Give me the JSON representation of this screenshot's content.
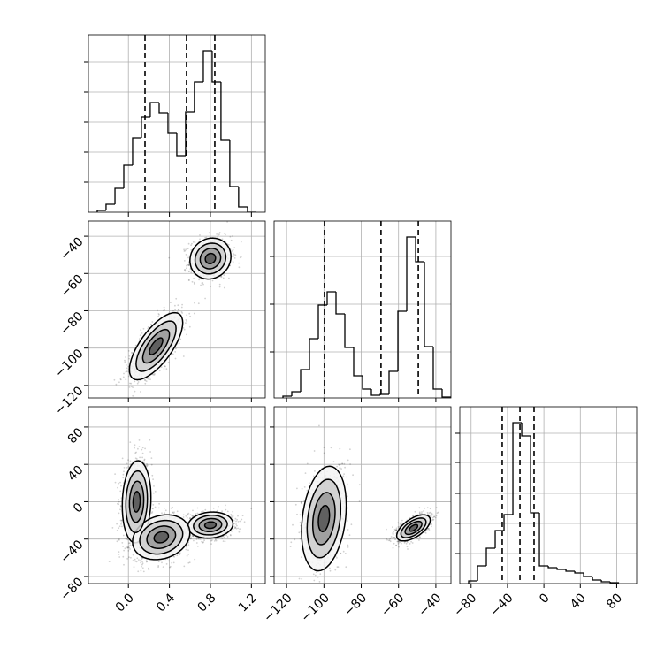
{
  "chart_data": {
    "type": "corner",
    "grid": true,
    "params": [
      {
        "lim": [
          -0.39,
          1.335
        ],
        "ticks": [
          {
            "value": 0,
            "label": "0.0"
          },
          {
            "value": 0.4,
            "label": "0.4"
          },
          {
            "value": 0.8,
            "label": "0.8"
          },
          {
            "value": 1.2,
            "label": "1.2"
          }
        ]
      },
      {
        "lim": [
          -126.7,
          -31.9
        ],
        "ticks": [
          {
            "value": -120,
            "label": "−120"
          },
          {
            "value": -100,
            "label": "−100"
          },
          {
            "value": -80,
            "label": "−80"
          },
          {
            "value": -60,
            "label": "−60"
          },
          {
            "value": -40,
            "label": "−40"
          }
        ]
      },
      {
        "lim": [
          -92.4,
          101.9
        ],
        "ticks": [
          {
            "value": -80,
            "label": "−80"
          },
          {
            "value": -40,
            "label": "−40"
          },
          0,
          40,
          80
        ]
      }
    ],
    "row_ticks": [
      null,
      {
        "lim": [
          -126.7,
          -31.9
        ],
        "ticks": [
          {
            "value": -40,
            "label": "−40"
          },
          {
            "value": -60,
            "label": "−60"
          },
          {
            "value": -80,
            "label": "−80"
          },
          {
            "value": -100,
            "label": "−100"
          },
          {
            "value": -120,
            "label": "−120"
          }
        ]
      },
      {
        "lim": [
          -87.6,
          101.7
        ],
        "ticks": [
          80,
          40,
          0,
          {
            "value": -40,
            "label": "−40"
          },
          {
            "value": -80,
            "label": "−80"
          }
        ]
      }
    ],
    "hist": [
      {
        "bins": [
          -0.304,
          -0.218,
          -0.131,
          -0.045,
          0.041,
          0.127,
          0.213,
          0.3,
          0.386,
          0.472,
          0.558,
          0.644,
          0.731,
          0.817,
          0.903,
          0.989,
          1.075,
          1.162,
          1.248
        ],
        "counts": [
          2,
          9,
          27,
          53,
          84,
          108,
          124,
          112,
          90,
          64,
          113,
          147,
          182,
          147,
          82,
          29,
          6,
          0
        ],
        "quantiles": [
          0.162,
          0.567,
          0.843
        ],
        "ylim": [
          0,
          200
        ],
        "yticks": [
          34,
          68,
          102,
          136,
          170
        ]
      },
      {
        "bins": [
          -121.96,
          -117.22,
          -112.48,
          -107.74,
          -103.0,
          -98.26,
          -93.52,
          -88.78,
          -84.04,
          -79.3,
          -74.56,
          -69.82,
          -65.08,
          -60.34,
          -55.6,
          -50.86,
          -46.12,
          -41.38,
          -36.64,
          -31.9
        ],
        "counts": [
          2,
          7,
          32,
          67,
          105,
          120,
          95,
          57,
          25,
          10,
          3,
          4,
          30,
          98,
          182,
          154,
          58,
          10,
          1
        ],
        "quantiles": [
          -99.7,
          -69.4,
          -49.4
        ],
        "ylim": [
          0,
          200
        ],
        "yticks": [
          52,
          106,
          160
        ]
      },
      {
        "bins": [
          -82.68,
          -72.96,
          -63.24,
          -53.52,
          -43.8,
          -34.08,
          -24.36,
          -14.64,
          -4.92,
          4.8,
          14.52,
          24.24,
          33.96,
          43.68,
          53.4,
          63.12,
          72.84,
          82.56
        ],
        "counts": [
          3,
          20,
          40,
          60,
          78,
          182,
          167,
          80,
          20,
          18,
          16,
          14,
          12,
          8,
          4,
          2,
          1
        ],
        "quantiles": [
          -45.8,
          -26.3,
          -10.8
        ],
        "ylim": [
          0,
          200
        ],
        "yticks": [
          34,
          68,
          102,
          137,
          170
        ]
      }
    ],
    "contour_levels": [
      0.5,
      1,
      1.5,
      2
    ],
    "pairs": [
      {
        "col": 0,
        "row": 1,
        "clusters": [
          {
            "x": 0.8,
            "y": -52,
            "sx": 0.1,
            "sy": 5.5,
            "rho": 0.1
          },
          {
            "x": 0.27,
            "y": -99,
            "sx": 0.13,
            "sy": 9,
            "rho": 0.7
          }
        ]
      },
      {
        "col": 0,
        "row": 2,
        "clusters": [
          {
            "x": 0.8,
            "y": -25,
            "sx": 0.11,
            "sy": 7,
            "rho": 0.1
          },
          {
            "x": 0.08,
            "y": 0,
            "sx": 0.07,
            "sy": 22,
            "rho": 0.1
          },
          {
            "x": 0.32,
            "y": -38,
            "sx": 0.14,
            "sy": 12,
            "rho": 0.2
          }
        ]
      },
      {
        "col": 1,
        "row": 2,
        "clusters": [
          {
            "x": -52,
            "y": -28,
            "sx": 4.5,
            "sy": 7,
            "rho": 0.6
          },
          {
            "x": -100,
            "y": -18,
            "sx": 6,
            "sy": 28,
            "rho": 0.25
          }
        ]
      }
    ]
  }
}
